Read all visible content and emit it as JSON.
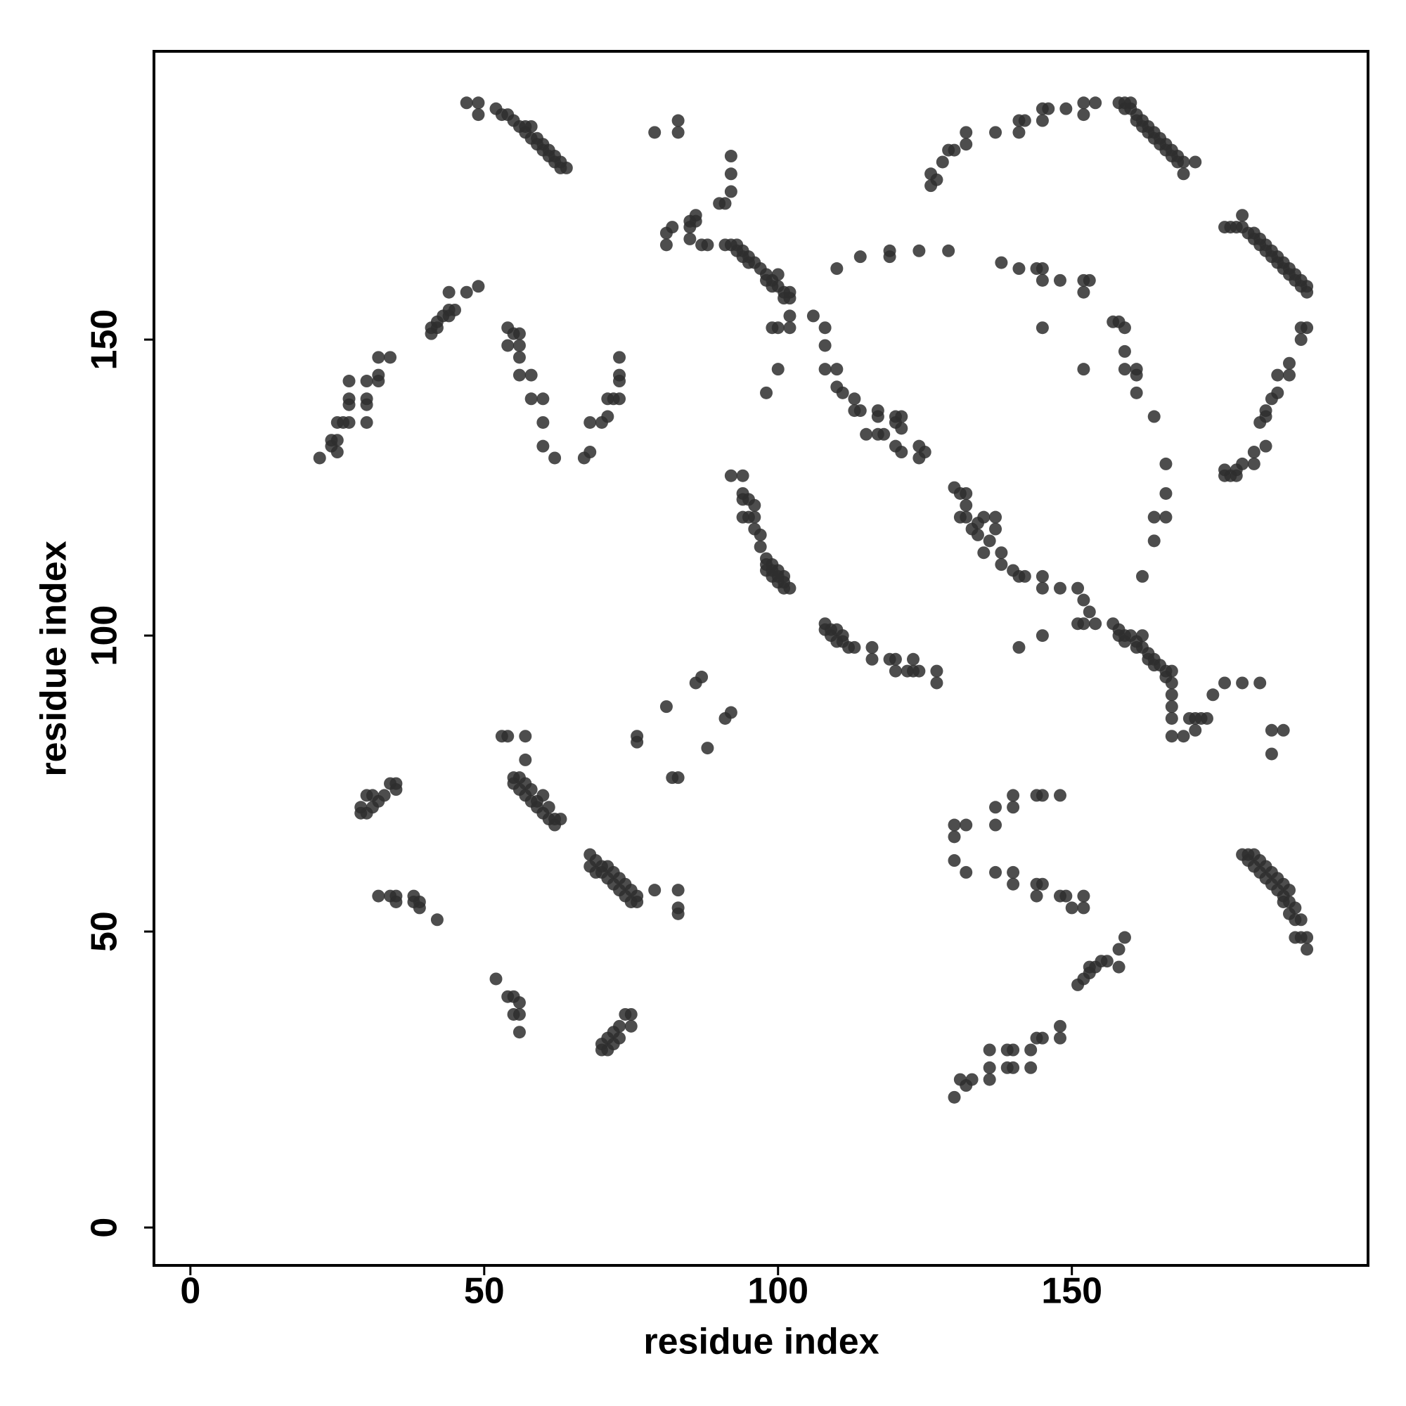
{
  "chart_data": {
    "type": "scatter",
    "x_label": "residue index",
    "y_label": "residue index",
    "xlim": [
      -6.2,
      200.4
    ],
    "ylim": [
      -6.4,
      198.7
    ],
    "xticks": [
      0,
      50,
      100,
      150
    ],
    "yticks": [
      0,
      50,
      100,
      150
    ],
    "color": "#2e2e2e",
    "x": [
      47,
      49,
      49,
      52,
      53,
      54,
      55,
      56,
      57,
      57,
      58,
      58,
      59,
      59,
      60,
      60,
      61,
      61,
      62,
      62,
      63,
      63,
      64,
      79,
      83,
      83,
      81,
      81,
      82,
      85,
      85,
      85,
      86,
      86,
      87,
      88,
      90,
      91,
      92,
      92,
      92,
      91,
      92,
      93,
      93,
      94,
      94,
      95,
      95,
      96,
      97,
      98,
      98,
      99,
      99,
      100,
      100,
      101,
      101,
      102,
      102,
      102,
      102,
      100,
      99,
      106,
      108,
      108,
      100,
      98,
      108,
      110,
      110,
      111,
      113,
      113,
      114,
      115,
      117,
      117,
      117,
      118,
      120,
      120,
      121,
      121,
      120,
      121,
      124,
      125,
      124,
      130,
      131,
      132,
      132,
      131,
      132,
      133,
      134,
      134,
      135,
      136,
      137,
      137,
      135,
      138,
      138,
      140,
      141,
      142,
      145,
      145,
      148,
      151,
      152,
      153,
      151,
      152,
      154,
      141,
      145,
      157,
      158,
      158,
      159,
      159,
      160,
      161,
      161,
      162,
      162,
      163,
      163,
      164,
      164,
      165,
      166,
      166,
      167,
      167,
      167,
      167,
      167,
      167,
      169,
      170,
      171,
      171,
      172,
      173,
      174,
      176,
      179,
      182,
      184,
      186,
      184,
      158,
      159,
      159,
      160,
      160,
      161,
      161,
      162,
      162,
      163,
      163,
      164,
      164,
      165,
      165,
      166,
      166,
      167,
      167,
      168,
      168,
      169,
      169,
      171,
      126,
      126,
      127,
      128,
      129,
      130,
      132,
      132,
      137,
      141,
      141,
      142,
      145,
      145,
      146,
      149,
      152,
      152,
      154,
      176,
      177,
      178,
      179,
      179,
      180,
      181,
      181,
      182,
      182,
      183,
      183,
      184,
      184,
      185,
      185,
      186,
      186,
      187,
      187,
      188,
      188,
      189,
      189,
      190,
      190,
      189,
      190,
      189,
      187,
      187,
      185,
      185,
      184,
      183,
      183,
      182,
      183,
      181,
      181,
      179,
      178,
      178,
      177,
      176,
      176,
      129,
      124,
      119,
      119,
      114,
      110,
      138,
      141,
      144,
      145,
      145,
      148,
      152,
      153,
      152,
      152,
      145,
      158,
      157,
      159,
      159,
      159,
      161,
      161,
      161,
      164,
      166,
      166,
      164,
      166,
      164,
      162,
      22,
      24,
      24,
      25,
      25,
      25,
      26,
      27,
      27,
      27,
      27,
      30,
      30,
      30,
      30,
      32,
      32,
      32,
      34,
      41,
      41,
      42,
      42,
      43,
      44,
      44,
      45,
      44,
      47,
      49,
      54,
      54,
      55,
      56,
      56,
      56,
      56,
      58,
      58,
      60,
      60,
      60,
      62,
      67,
      68,
      68,
      70,
      71,
      71,
      72,
      73,
      73,
      73,
      73,
      92,
      94,
      94,
      94,
      95,
      96,
      94,
      95,
      96,
      96,
      97,
      97,
      98,
      98,
      99,
      98,
      99,
      99,
      100,
      100,
      100,
      101,
      101,
      101,
      102,
      108,
      108,
      109,
      109,
      110,
      110,
      111,
      111,
      112,
      113,
      116,
      116,
      119,
      120,
      120,
      122,
      123,
      123,
      124,
      127,
      127,
      86,
      87,
      81,
      76,
      76,
      92,
      91,
      88,
      82,
      83,
      83,
      83,
      83,
      79,
      53,
      54,
      57,
      57,
      55,
      55,
      56,
      56,
      57,
      57,
      58,
      58,
      59,
      59,
      60,
      60,
      61,
      61,
      62,
      62,
      63,
      68,
      68,
      69,
      69,
      70,
      70,
      71,
      71,
      72,
      72,
      73,
      73,
      74,
      74,
      75,
      75,
      76,
      76,
      29,
      30,
      31,
      31,
      32,
      33,
      34,
      35,
      35,
      29,
      30,
      32,
      34,
      35,
      35,
      38,
      38,
      39,
      39,
      42,
      52,
      54,
      55,
      55,
      56,
      56,
      56,
      70,
      70,
      71,
      71,
      72,
      72,
      73,
      73,
      74,
      75,
      75,
      130,
      130,
      132,
      130,
      132,
      137,
      137,
      140,
      140,
      137,
      140,
      140,
      144,
      144,
      145,
      145,
      144,
      148,
      148,
      149,
      150,
      152,
      152,
      130,
      131,
      132,
      133,
      136,
      136,
      136,
      139,
      139,
      140,
      140,
      143,
      143,
      144,
      145,
      148,
      148,
      151,
      152,
      153,
      153,
      154,
      155,
      156,
      158,
      158,
      159,
      179,
      180,
      180,
      181,
      181,
      182,
      182,
      183,
      183,
      184,
      184,
      185,
      185,
      186,
      186,
      187,
      187,
      187,
      188,
      188,
      189,
      189,
      190,
      190,
      188,
      186
    ],
    "values": [
      190,
      190,
      188,
      189,
      188,
      188,
      187,
      186,
      186,
      185,
      186,
      184,
      184,
      183,
      183,
      182,
      182,
      181,
      181,
      180,
      180,
      179,
      179,
      185,
      187,
      185,
      166,
      168,
      169,
      167,
      169,
      170,
      171,
      170,
      166,
      166,
      173,
      173,
      175,
      178,
      181,
      166,
      166,
      166,
      165,
      165,
      164,
      164,
      163,
      163,
      162,
      161,
      160,
      160,
      159,
      161,
      159,
      158,
      157,
      158,
      157,
      154,
      152,
      152,
      152,
      154,
      152,
      149,
      145,
      141,
      145,
      145,
      142,
      141,
      140,
      138,
      138,
      134,
      138,
      137,
      134,
      134,
      137,
      136,
      137,
      135,
      132,
      131,
      132,
      131,
      130,
      125,
      124,
      124,
      122,
      120,
      120,
      118,
      119,
      117,
      120,
      116,
      120,
      118,
      114,
      114,
      112,
      111,
      110,
      110,
      110,
      108,
      108,
      108,
      106,
      104,
      102,
      102,
      102,
      98,
      100,
      102,
      101,
      100,
      100,
      99,
      100,
      99,
      98,
      100,
      98,
      97,
      96,
      96,
      95,
      95,
      94,
      93,
      94,
      92,
      90,
      88,
      86,
      83,
      83,
      86,
      86,
      84,
      86,
      86,
      90,
      92,
      92,
      92,
      84,
      84,
      80,
      190,
      190,
      189,
      190,
      189,
      188,
      187,
      187,
      186,
      186,
      185,
      185,
      184,
      184,
      183,
      183,
      182,
      182,
      181,
      181,
      180,
      180,
      178,
      180,
      178,
      176,
      177,
      180,
      182,
      182,
      183,
      185,
      185,
      185,
      187,
      187,
      187,
      189,
      189,
      189,
      188,
      190,
      190,
      169,
      169,
      169,
      169,
      171,
      168,
      168,
      167,
      167,
      166,
      166,
      165,
      165,
      164,
      164,
      163,
      163,
      162,
      162,
      161,
      161,
      160,
      160,
      159,
      159,
      158,
      152,
      152,
      150,
      146,
      144,
      144,
      141,
      140,
      138,
      137,
      136,
      132,
      131,
      129,
      129,
      128,
      127,
      127,
      128,
      127,
      165,
      165,
      165,
      164,
      164,
      162,
      163,
      162,
      162,
      162,
      160,
      160,
      160,
      160,
      158,
      145,
      152,
      153,
      153,
      152,
      148,
      145,
      145,
      144,
      141,
      137,
      129,
      124,
      120,
      120,
      116,
      110,
      130,
      132,
      133,
      133,
      131,
      136,
      136,
      136,
      139,
      140,
      143,
      140,
      139,
      136,
      143,
      144,
      143,
      147,
      147,
      151,
      152,
      153,
      152,
      154,
      154,
      155,
      155,
      158,
      158,
      159,
      152,
      149,
      151,
      151,
      149,
      147,
      144,
      144,
      140,
      140,
      136,
      132,
      130,
      130,
      131,
      136,
      136,
      137,
      140,
      140,
      140,
      143,
      144,
      147,
      127,
      127,
      124,
      123,
      123,
      122,
      120,
      120,
      120,
      118,
      117,
      115,
      113,
      112,
      112,
      111,
      111,
      110,
      111,
      110,
      109,
      110,
      109,
      108,
      108,
      102,
      101,
      101,
      100,
      101,
      99,
      100,
      99,
      98,
      98,
      98,
      96,
      96,
      96,
      94,
      94,
      96,
      94,
      94,
      94,
      92,
      92,
      93,
      88,
      83,
      82,
      87,
      86,
      81,
      76,
      76,
      57,
      54,
      53,
      57,
      83,
      83,
      83,
      79,
      76,
      75,
      76,
      74,
      75,
      73,
      74,
      72,
      72,
      71,
      73,
      70,
      71,
      69,
      69,
      68,
      69,
      63,
      61,
      62,
      60,
      61,
      60,
      61,
      59,
      60,
      58,
      59,
      57,
      58,
      56,
      57,
      55,
      56,
      55,
      71,
      73,
      71,
      73,
      72,
      73,
      75,
      75,
      74,
      70,
      70,
      56,
      56,
      56,
      55,
      56,
      55,
      55,
      54,
      52,
      42,
      39,
      39,
      36,
      36,
      38,
      33,
      31,
      30,
      32,
      30,
      33,
      31,
      34,
      32,
      36,
      36,
      34,
      68,
      66,
      68,
      62,
      60,
      71,
      68,
      71,
      73,
      60,
      60,
      58,
      58,
      56,
      58,
      73,
      73,
      73,
      56,
      56,
      54,
      56,
      54,
      22,
      25,
      24,
      25,
      25,
      27,
      30,
      27,
      30,
      30,
      27,
      30,
      27,
      32,
      32,
      32,
      34,
      41,
      42,
      43,
      44,
      44,
      45,
      45,
      47,
      44,
      49,
      63,
      63,
      62,
      63,
      61,
      62,
      60,
      61,
      59,
      60,
      58,
      59,
      57,
      58,
      56,
      57,
      55,
      53,
      54,
      52,
      52,
      49,
      49,
      47,
      49,
      55
    ]
  }
}
